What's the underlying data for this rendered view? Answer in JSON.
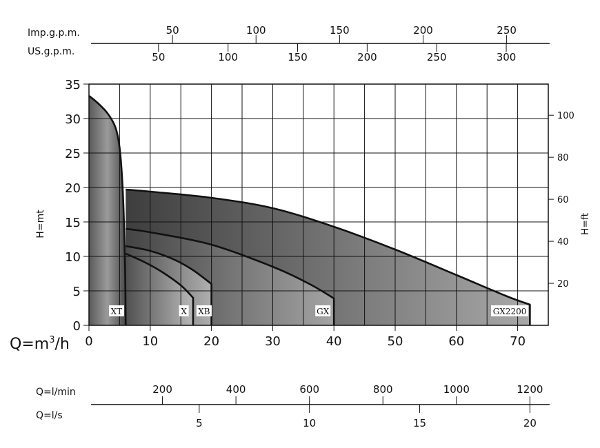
{
  "chart_data": {
    "type": "area",
    "ylabel_left": "H=mt",
    "ylabel_right": "H=ft",
    "xlabel_main": "Q=m³/h",
    "xlabel_main_base": "Q=m",
    "xlabel_main_sup": "3",
    "xlabel_main_tail": "/h",
    "xlim": [
      0,
      75
    ],
    "ylim": [
      0,
      35
    ],
    "x_ticks": [
      "0",
      "10",
      "20",
      "30",
      "40",
      "50",
      "60",
      "70"
    ],
    "y_ticks": [
      "0",
      "5",
      "10",
      "15",
      "20",
      "25",
      "30",
      "35"
    ],
    "right_ticks": [
      "20",
      "40",
      "60",
      "80",
      "100"
    ],
    "grid": true,
    "top_axes": {
      "imp_label": "Imp.g.p.m.",
      "imp_ticks": [
        "50",
        "100",
        "150",
        "200",
        "250"
      ],
      "us_label": "US.g.p.m.",
      "us_ticks": [
        "50",
        "100",
        "150",
        "200",
        "250",
        "300"
      ]
    },
    "bottom_axes": {
      "lmin_label": "Q=l/min",
      "lmin_ticks": [
        "200",
        "400",
        "600",
        "800",
        "1000",
        "1200"
      ],
      "ls_label": "Q=l/s",
      "ls_ticks": [
        "5",
        "10",
        "15",
        "20"
      ]
    },
    "series": [
      {
        "name": "XT",
        "points": [
          [
            0,
            33.3
          ],
          [
            1.5,
            32.2
          ],
          [
            3,
            30.8
          ],
          [
            4.2,
            29
          ],
          [
            4.8,
            27
          ],
          [
            5.2,
            24
          ],
          [
            5.6,
            18
          ],
          [
            5.9,
            8
          ],
          [
            6,
            0
          ]
        ]
      },
      {
        "name": "GX2200",
        "points": [
          [
            6,
            19.7
          ],
          [
            10,
            19.4
          ],
          [
            20,
            18.5
          ],
          [
            30,
            17
          ],
          [
            40,
            14.3
          ],
          [
            50,
            11
          ],
          [
            60,
            7.3
          ],
          [
            68,
            4.3
          ],
          [
            72,
            3
          ],
          [
            72,
            0
          ]
        ]
      },
      {
        "name": "GX",
        "points": [
          [
            6,
            14
          ],
          [
            10,
            13.5
          ],
          [
            20,
            11.7
          ],
          [
            30,
            8.5
          ],
          [
            36,
            6
          ],
          [
            40,
            3.9
          ],
          [
            40,
            0
          ]
        ]
      },
      {
        "name": "XB",
        "points": [
          [
            6,
            11.5
          ],
          [
            10,
            10.8
          ],
          [
            14,
            9.5
          ],
          [
            17,
            8
          ],
          [
            20,
            6
          ],
          [
            20,
            0
          ]
        ]
      },
      {
        "name": "X",
        "points": [
          [
            6,
            10.4
          ],
          [
            9,
            9.2
          ],
          [
            12,
            7.7
          ],
          [
            15,
            5.8
          ],
          [
            17,
            4
          ],
          [
            17,
            0
          ]
        ]
      }
    ]
  }
}
